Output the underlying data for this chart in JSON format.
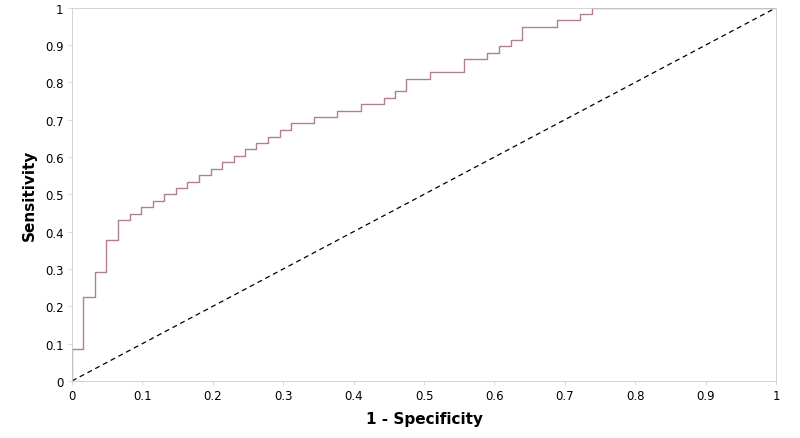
{
  "roc_fpr": [
    0.0,
    0.0,
    0.016,
    0.016,
    0.033,
    0.033,
    0.049,
    0.049,
    0.066,
    0.066,
    0.082,
    0.082,
    0.098,
    0.098,
    0.115,
    0.115,
    0.131,
    0.131,
    0.148,
    0.148,
    0.164,
    0.164,
    0.18,
    0.18,
    0.197,
    0.197,
    0.213,
    0.213,
    0.23,
    0.23,
    0.246,
    0.246,
    0.262,
    0.262,
    0.279,
    0.279,
    0.295,
    0.295,
    0.311,
    0.311,
    0.344,
    0.344,
    0.377,
    0.377,
    0.41,
    0.41,
    0.443,
    0.443,
    0.459,
    0.459,
    0.475,
    0.475,
    0.508,
    0.508,
    0.557,
    0.557,
    0.59,
    0.59,
    0.607,
    0.607,
    0.623,
    0.623,
    0.639,
    0.639,
    0.689,
    0.689,
    0.721,
    0.721,
    0.738,
    0.738,
    0.77,
    0.77,
    0.902,
    0.902,
    0.934,
    0.934,
    1.0
  ],
  "roc_tpr": [
    0.0,
    0.086,
    0.086,
    0.224,
    0.224,
    0.293,
    0.293,
    0.379,
    0.379,
    0.431,
    0.431,
    0.448,
    0.448,
    0.466,
    0.466,
    0.483,
    0.483,
    0.5,
    0.5,
    0.517,
    0.517,
    0.534,
    0.534,
    0.552,
    0.552,
    0.569,
    0.569,
    0.586,
    0.586,
    0.603,
    0.603,
    0.621,
    0.621,
    0.638,
    0.638,
    0.655,
    0.655,
    0.672,
    0.672,
    0.69,
    0.69,
    0.707,
    0.707,
    0.724,
    0.724,
    0.741,
    0.741,
    0.759,
    0.759,
    0.776,
    0.776,
    0.81,
    0.81,
    0.828,
    0.828,
    0.862,
    0.862,
    0.879,
    0.879,
    0.897,
    0.897,
    0.914,
    0.914,
    0.948,
    0.948,
    0.966,
    0.966,
    0.983,
    0.983,
    1.0,
    1.0,
    1.0,
    1.0,
    1.0,
    1.0,
    1.0,
    1.0
  ],
  "roc_color": "#b08090",
  "diagonal_color": "#000000",
  "xlabel": "1 - Specificity",
  "ylabel": "Sensitivity",
  "xlim": [
    0.0,
    1.0
  ],
  "ylim": [
    0.0,
    1.0
  ],
  "xticks": [
    0.0,
    0.1,
    0.2,
    0.3,
    0.4,
    0.5,
    0.6,
    0.7,
    0.8,
    0.9,
    1.0
  ],
  "yticks": [
    0.0,
    0.1,
    0.2,
    0.3,
    0.4,
    0.5,
    0.6,
    0.7,
    0.8,
    0.9,
    1.0
  ],
  "line_width": 1.0,
  "diagonal_linewidth": 0.9,
  "background_color": "#ffffff",
  "spine_color": "#cccccc",
  "tick_fontsize": 8.5,
  "xlabel_fontsize": 11,
  "ylabel_fontsize": 11
}
